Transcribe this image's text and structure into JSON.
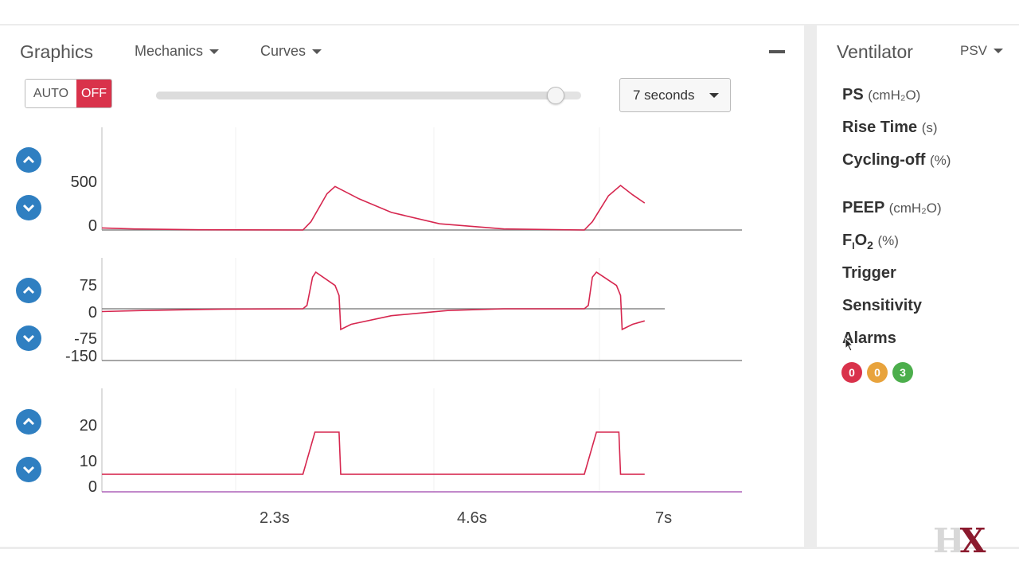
{
  "graphics": {
    "title": "Graphics",
    "mechanics_menu": "Mechanics",
    "curves_menu": "Curves",
    "auto_label": "AUTO",
    "off_label": "OFF",
    "slider_fraction": 0.94,
    "duration": "7 seconds"
  },
  "ventilator": {
    "title": "Ventilator",
    "mode": "PSV",
    "params": [
      {
        "label": "PS",
        "unit": "(cmH₂O)"
      },
      {
        "label": "Rise Time",
        "unit": "(s)"
      },
      {
        "label": "Cycling-off",
        "unit": "(%)"
      },
      {
        "label": "PEEP",
        "unit": "(cmH₂O)"
      },
      {
        "label": "F",
        "sub": "I",
        "label2": "O",
        "sub2": "2",
        "unit": "(%)"
      },
      {
        "label": "Trigger",
        "unit": ""
      },
      {
        "label": "Sensitivity",
        "unit": ""
      },
      {
        "label": "Alarms",
        "unit": ""
      }
    ],
    "alarms": [
      {
        "count": "0",
        "color": "#d9324b"
      },
      {
        "count": "0",
        "color": "#e8a33c"
      },
      {
        "count": "3",
        "color": "#4cae4c"
      }
    ]
  },
  "chart_data": [
    {
      "type": "line",
      "yticks": [
        "500",
        "0"
      ],
      "yrange": [
        0,
        600
      ],
      "x_range": [
        0,
        7
      ],
      "series": [
        {
          "color": "#d6274f",
          "points": [
            [
              0,
              20
            ],
            [
              0.4,
              10
            ],
            [
              1.2,
              2
            ],
            [
              2.5,
              0
            ],
            [
              2.6,
              80
            ],
            [
              2.8,
              350
            ],
            [
              2.9,
              420
            ],
            [
              3.2,
              300
            ],
            [
              3.6,
              170
            ],
            [
              4.2,
              60
            ],
            [
              5,
              10
            ],
            [
              6,
              0
            ],
            [
              6.1,
              80
            ],
            [
              6.3,
              330
            ],
            [
              6.45,
              430
            ],
            [
              6.6,
              340
            ],
            [
              6.75,
              260
            ]
          ]
        }
      ]
    },
    {
      "type": "line",
      "yticks": [
        "75",
        "0",
        "-75",
        "-150"
      ],
      "yrange": [
        -150,
        150
      ],
      "x_range": [
        0,
        7
      ],
      "series": [
        {
          "color": "#d6274f",
          "points": [
            [
              0,
              -8
            ],
            [
              0.5,
              -5
            ],
            [
              1.5,
              -1
            ],
            [
              2.5,
              0
            ],
            [
              2.55,
              10
            ],
            [
              2.62,
              95
            ],
            [
              2.66,
              110
            ],
            [
              2.9,
              70
            ],
            [
              2.95,
              40
            ],
            [
              2.97,
              -60
            ],
            [
              3.1,
              -45
            ],
            [
              3.6,
              -20
            ],
            [
              4.3,
              -5
            ],
            [
              5,
              0
            ],
            [
              6,
              0
            ],
            [
              6.05,
              10
            ],
            [
              6.1,
              95
            ],
            [
              6.15,
              110
            ],
            [
              6.4,
              70
            ],
            [
              6.45,
              40
            ],
            [
              6.47,
              -60
            ],
            [
              6.6,
              -45
            ],
            [
              6.75,
              -35
            ]
          ]
        }
      ]
    },
    {
      "type": "line",
      "yticks": [
        "20",
        "10",
        "0"
      ],
      "yrange": [
        0,
        24
      ],
      "x_range": [
        0,
        7
      ],
      "series": [
        {
          "color": "#d6274f",
          "points": [
            [
              0,
              5
            ],
            [
              2.5,
              5
            ],
            [
              2.65,
              17
            ],
            [
              2.95,
              17
            ],
            [
              2.97,
              5
            ],
            [
              6,
              5
            ],
            [
              6.15,
              17
            ],
            [
              6.43,
              17
            ],
            [
              6.45,
              5
            ],
            [
              6.75,
              5
            ]
          ]
        }
      ]
    }
  ],
  "x_ticks": [
    "2.3s",
    "4.6s",
    "7s"
  ],
  "logo": {
    "h": "H",
    "x": "X"
  }
}
